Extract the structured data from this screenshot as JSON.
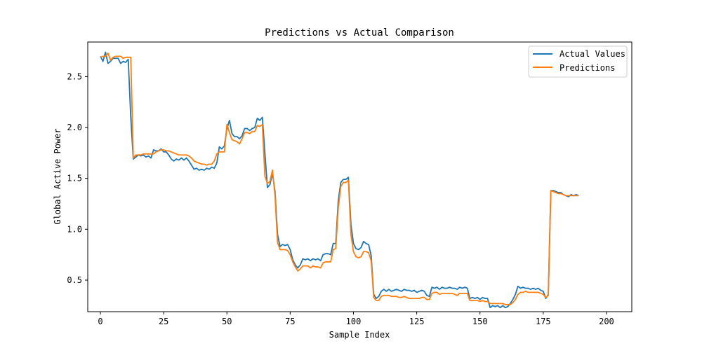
{
  "chart_data": {
    "type": "line",
    "title": "Predictions vs Actual Comparison",
    "xlabel": "Sample Index",
    "ylabel": "Global Active Power",
    "xlim": [
      -5,
      210
    ],
    "ylim": [
      0.19,
      2.84
    ],
    "xticks": [
      0,
      25,
      50,
      75,
      100,
      125,
      150,
      175,
      200
    ],
    "yticks": [
      0.5,
      1.0,
      1.5,
      2.0,
      2.5
    ],
    "ytick_labels": [
      "0.5",
      "1.0",
      "1.5",
      "2.0",
      "2.5"
    ],
    "grid": false,
    "legend_position": "top-right",
    "series": [
      {
        "name": "Actual Values",
        "color": "#1f77b4",
        "values": [
          2.7,
          2.65,
          2.74,
          2.63,
          2.65,
          2.68,
          2.68,
          2.68,
          2.63,
          2.65,
          2.64,
          2.67,
          2.1,
          1.69,
          1.71,
          1.73,
          1.72,
          1.73,
          1.71,
          1.72,
          1.7,
          1.78,
          1.77,
          1.77,
          1.79,
          1.76,
          1.76,
          1.73,
          1.69,
          1.67,
          1.69,
          1.68,
          1.7,
          1.68,
          1.7,
          1.67,
          1.63,
          1.59,
          1.6,
          1.58,
          1.59,
          1.58,
          1.6,
          1.59,
          1.61,
          1.6,
          1.65,
          1.81,
          1.79,
          1.82,
          1.99,
          2.07,
          1.94,
          1.91,
          1.91,
          1.89,
          1.92,
          1.99,
          1.99,
          1.97,
          1.99,
          2.0,
          2.09,
          2.07,
          2.1,
          1.75,
          1.41,
          1.44,
          1.55,
          1.37,
          0.95,
          0.83,
          0.85,
          0.84,
          0.85,
          0.8,
          0.7,
          0.65,
          0.62,
          0.65,
          0.71,
          0.7,
          0.71,
          0.69,
          0.71,
          0.7,
          0.71,
          0.69,
          0.75,
          0.76,
          0.76,
          0.75,
          0.86,
          0.86,
          1.28,
          1.46,
          1.49,
          1.49,
          1.51,
          1.05,
          0.86,
          0.81,
          0.8,
          0.82,
          0.88,
          0.86,
          0.85,
          0.74,
          0.36,
          0.32,
          0.34,
          0.39,
          0.41,
          0.39,
          0.41,
          0.39,
          0.4,
          0.41,
          0.4,
          0.39,
          0.41,
          0.4,
          0.4,
          0.39,
          0.4,
          0.38,
          0.39,
          0.4,
          0.39,
          0.35,
          0.34,
          0.43,
          0.42,
          0.43,
          0.41,
          0.43,
          0.42,
          0.42,
          0.43,
          0.42,
          0.42,
          0.41,
          0.43,
          0.42,
          0.43,
          0.42,
          0.32,
          0.33,
          0.32,
          0.33,
          0.31,
          0.33,
          0.32,
          0.32,
          0.23,
          0.25,
          0.24,
          0.25,
          0.23,
          0.25,
          0.23,
          0.24,
          0.27,
          0.31,
          0.36,
          0.44,
          0.42,
          0.43,
          0.42,
          0.42,
          0.41,
          0.42,
          0.41,
          0.42,
          0.4,
          0.39,
          0.32,
          0.36,
          1.38,
          1.38,
          1.37,
          1.36,
          1.36,
          1.34,
          1.33,
          1.32,
          1.34,
          1.33,
          1.34,
          1.33
        ]
      },
      {
        "name": "Predictions",
        "color": "#ff7f0e",
        "values": [
          2.69,
          2.7,
          2.7,
          2.73,
          2.66,
          2.69,
          2.7,
          2.7,
          2.7,
          2.68,
          2.69,
          2.69,
          2.69,
          1.7,
          1.73,
          1.73,
          1.73,
          1.74,
          1.74,
          1.74,
          1.74,
          1.74,
          1.76,
          1.77,
          1.78,
          1.78,
          1.77,
          1.77,
          1.76,
          1.75,
          1.74,
          1.73,
          1.73,
          1.73,
          1.73,
          1.72,
          1.7,
          1.67,
          1.66,
          1.65,
          1.64,
          1.64,
          1.63,
          1.64,
          1.64,
          1.67,
          1.74,
          1.76,
          1.76,
          1.76,
          2.03,
          1.95,
          1.88,
          1.87,
          1.86,
          1.84,
          1.89,
          1.95,
          1.95,
          1.94,
          1.96,
          1.96,
          2.02,
          2.01,
          2.03,
          1.52,
          1.45,
          1.47,
          1.58,
          1.33,
          0.87,
          0.8,
          0.8,
          0.8,
          0.79,
          0.75,
          0.68,
          0.63,
          0.59,
          0.61,
          0.64,
          0.64,
          0.64,
          0.62,
          0.64,
          0.63,
          0.63,
          0.62,
          0.67,
          0.68,
          0.68,
          0.68,
          0.8,
          0.81,
          1.21,
          1.42,
          1.46,
          1.46,
          1.48,
          0.95,
          0.78,
          0.73,
          0.72,
          0.73,
          0.78,
          0.78,
          0.77,
          0.69,
          0.33,
          0.3,
          0.3,
          0.34,
          0.35,
          0.35,
          0.35,
          0.34,
          0.34,
          0.34,
          0.33,
          0.33,
          0.34,
          0.33,
          0.32,
          0.32,
          0.32,
          0.32,
          0.32,
          0.33,
          0.33,
          0.31,
          0.31,
          0.37,
          0.38,
          0.38,
          0.36,
          0.37,
          0.37,
          0.37,
          0.37,
          0.37,
          0.36,
          0.35,
          0.37,
          0.37,
          0.37,
          0.37,
          0.3,
          0.3,
          0.3,
          0.3,
          0.29,
          0.3,
          0.29,
          0.29,
          0.27,
          0.27,
          0.27,
          0.27,
          0.27,
          0.27,
          0.26,
          0.26,
          0.26,
          0.28,
          0.31,
          0.36,
          0.38,
          0.38,
          0.39,
          0.38,
          0.38,
          0.38,
          0.38,
          0.38,
          0.37,
          0.36,
          0.33,
          0.35,
          1.38,
          1.37,
          1.36,
          1.35,
          1.35,
          1.34,
          1.33,
          1.33,
          1.33,
          1.33,
          1.33,
          1.33
        ]
      }
    ]
  }
}
